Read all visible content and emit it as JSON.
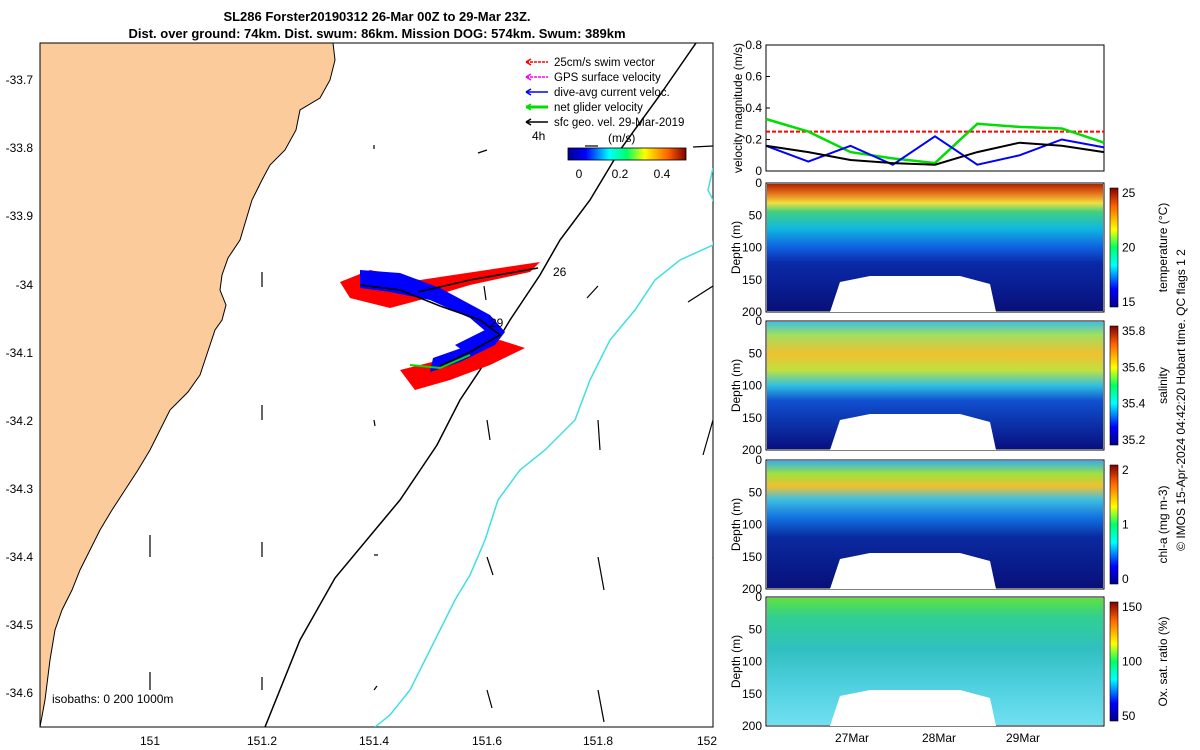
{
  "title": {
    "line1": "SL286 Forster20190312 26-Mar 00Z to 29-Mar 23Z.",
    "line2": "Dist. over ground: 74km. Dist. swum: 86km. Mission DOG: 574km. Swum: 389km"
  },
  "colors": {
    "land": "#fbcb9b",
    "isobath": "#40e0e0",
    "swim": "#ff0000",
    "gps": "#ff00ff",
    "dive_avg": "#0000ff",
    "net": "#00dd00",
    "geo": "#000000"
  },
  "map": {
    "x_ticks": [
      "151",
      "151.2",
      "151.4",
      "151.6",
      "151.8",
      "152"
    ],
    "y_ticks": [
      "-33.7",
      "-33.8",
      "-33.9",
      "-34",
      "-34.1",
      "-34.2",
      "-34.3",
      "-34.4",
      "-34.5",
      "-34.6"
    ],
    "legend": [
      {
        "key": "swim",
        "label": "25cm/s swim vector"
      },
      {
        "key": "gps",
        "label": "GPS surface velocity"
      },
      {
        "key": "dive_avg",
        "label": "dive-avg current veloc."
      },
      {
        "key": "net",
        "label": "net glider velocity"
      },
      {
        "key": "geo",
        "label": "sfc geo. vel. 29-Mar-2019"
      }
    ],
    "colorbar_title": "(m/s)",
    "colorbar_ticks": [
      "0",
      "0.2",
      "0.4"
    ],
    "interval_label": "4h",
    "day_labels": [
      "26",
      "29"
    ],
    "isobath_label": "isobaths: 0   200  1000m"
  },
  "chart_data": [
    {
      "type": "line",
      "ylabel": "velocity magnitude (m/s)",
      "ylim": [
        0,
        0.8
      ],
      "y_ticks": [
        "0",
        "0.2",
        "0.4",
        "0.6",
        "0.8"
      ],
      "x": [
        0,
        0.5,
        1,
        1.5,
        2,
        2.5,
        3,
        3.5,
        4
      ],
      "series": [
        {
          "key": "swim",
          "values": [
            0.25,
            0.25,
            0.25,
            0.25,
            0.25,
            0.25,
            0.25,
            0.25,
            0.25
          ]
        },
        {
          "key": "net",
          "values": [
            0.33,
            0.25,
            0.12,
            0.08,
            0.05,
            0.3,
            0.28,
            0.27,
            0.18
          ]
        },
        {
          "key": "dive_avg",
          "values": [
            0.16,
            0.06,
            0.16,
            0.04,
            0.22,
            0.04,
            0.1,
            0.2,
            0.15
          ]
        },
        {
          "key": "geo",
          "values": [
            0.16,
            0.12,
            0.07,
            0.05,
            0.04,
            0.12,
            0.18,
            0.16,
            0.12
          ]
        }
      ]
    },
    {
      "type": "heatmap",
      "ylabel": "Depth (m)",
      "colorbar_label": "temperature (°C)",
      "cb_ticks": [
        "25",
        "20",
        "15"
      ],
      "y_ticks": [
        "0",
        "50",
        "100",
        "150",
        "200"
      ]
    },
    {
      "type": "heatmap",
      "ylabel": "Depth (m)",
      "colorbar_label": "salinity",
      "cb_ticks": [
        "35.8",
        "35.6",
        "35.4",
        "35.2"
      ],
      "y_ticks": [
        "0",
        "50",
        "100",
        "150",
        "200"
      ]
    },
    {
      "type": "heatmap",
      "ylabel": "Depth (m)",
      "colorbar_label": "chl-a (mg m-3)",
      "cb_ticks": [
        "2",
        "1",
        "0"
      ],
      "y_ticks": [
        "0",
        "50",
        "100",
        "150",
        "200"
      ]
    },
    {
      "type": "heatmap",
      "ylabel": "Depth (m)",
      "colorbar_label": "Ox. sat. ratio (%)",
      "cb_ticks": [
        "150",
        "100",
        "50"
      ],
      "y_ticks": [
        "0",
        "50",
        "100",
        "150",
        "200"
      ]
    }
  ],
  "time_ticks": [
    "27Mar",
    "28Mar",
    "29Mar"
  ],
  "footer": "© IMOS 15-Apr-2024 04:42:20 Hobart time. QC flags 1  2"
}
